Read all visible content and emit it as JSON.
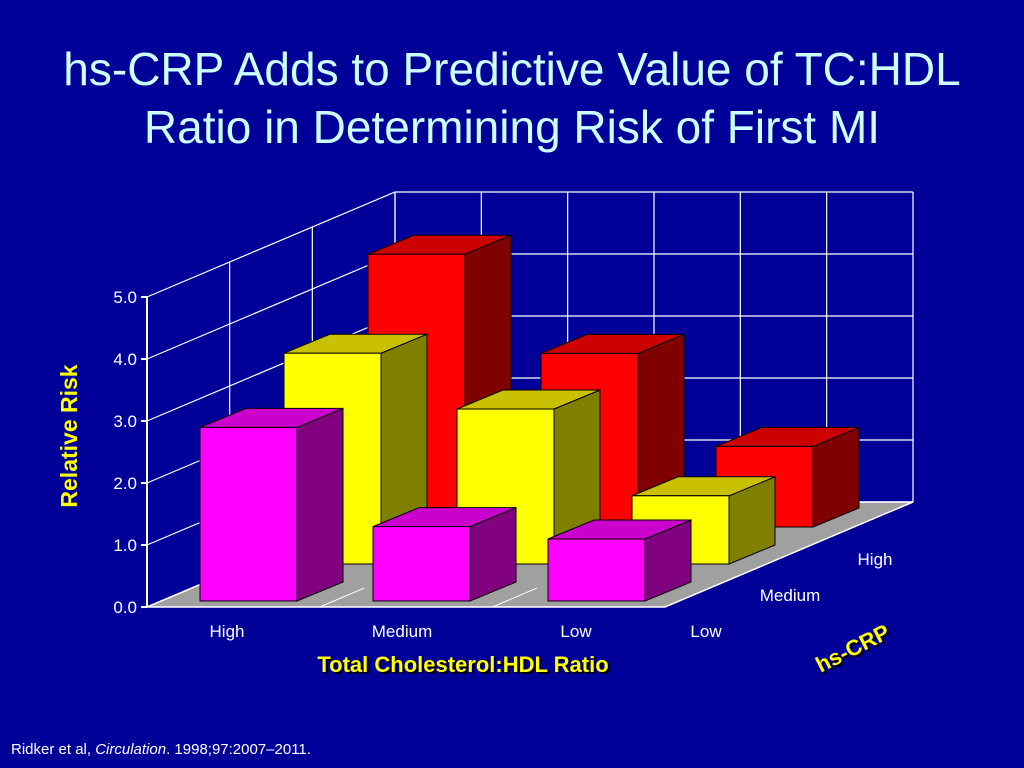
{
  "slide": {
    "title_line1": "hs-CRP Adds to Predictive Value of TC:HDL",
    "title_line2": "Ratio in Determining Risk of First MI",
    "citation_authors": "Ridker et al, ",
    "citation_journal": "Circulation",
    "citation_rest": ". 1998;97:2007–2011."
  },
  "colors": {
    "background": "#000099",
    "title": "#CCFFFF",
    "axis_title": "#FFFF00",
    "floor": "#A0A0A0"
  },
  "chart_data": {
    "type": "bar",
    "subtype": "3d-grouped",
    "title": "hs-CRP Adds to Predictive Value of TC:HDL Ratio in Determining Risk of First MI",
    "xlabel": "Total Cholesterol:HDL Ratio",
    "ylabel": "Relative Risk",
    "zlabel": "hs-CRP",
    "categories": [
      "High",
      "Medium",
      "Low"
    ],
    "ylim": [
      0,
      5
    ],
    "yticks": [
      "0.0",
      "1.0",
      "2.0",
      "3.0",
      "4.0",
      "5.0"
    ],
    "grid": true,
    "series": [
      {
        "name": "Low",
        "color": "#FF00FF",
        "top": "#CC00CC",
        "side": "#800080",
        "values": [
          2.8,
          1.2,
          1.0
        ]
      },
      {
        "name": "Medium",
        "color": "#FFFF00",
        "top": "#C8C000",
        "side": "#808000",
        "values": [
          3.4,
          2.5,
          1.1
        ]
      },
      {
        "name": "High",
        "color": "#FF0000",
        "top": "#CC0000",
        "side": "#800000",
        "values": [
          4.4,
          2.8,
          1.3
        ]
      }
    ]
  }
}
